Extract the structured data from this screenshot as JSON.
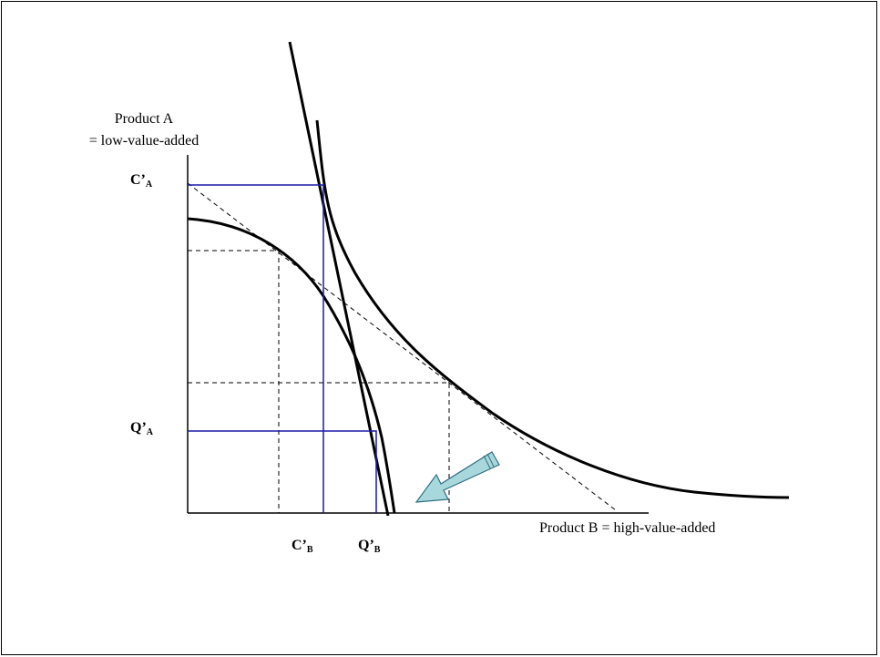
{
  "diagram": {
    "y_axis_label_line1": "Product A",
    "y_axis_label_line2": "= low-value-added",
    "x_axis_label": "Product B = high-value-added",
    "ticks": {
      "c_a": {
        "main": "C’",
        "sub": "A"
      },
      "q_a": {
        "main": "Q’",
        "sub": "A"
      },
      "c_b": {
        "main": "C’",
        "sub": "B"
      },
      "q_b": {
        "main": "Q’",
        "sub": "B"
      }
    },
    "colors": {
      "curves": "#000000",
      "projection_lines": "#1a1aa8",
      "arrow_fill": "#a8d8dc",
      "arrow_stroke": "#2f6f80"
    }
  }
}
